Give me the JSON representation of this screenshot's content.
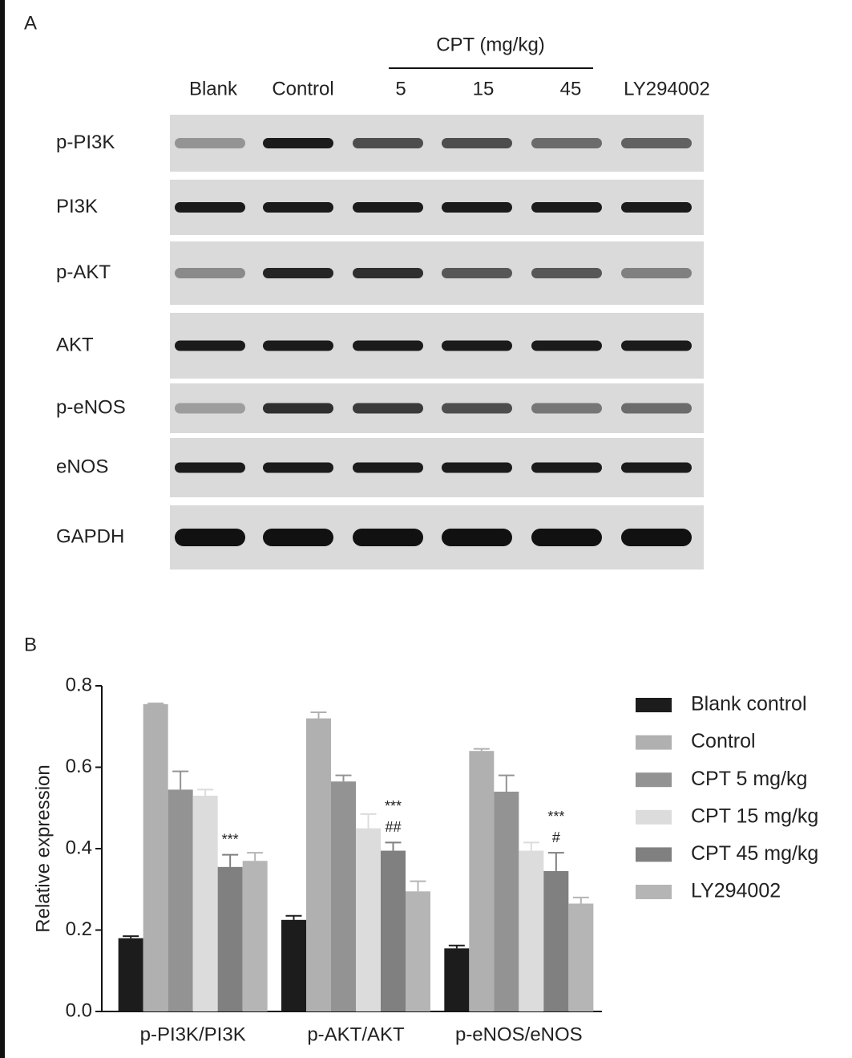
{
  "panel_a": {
    "label": "A",
    "group_label": "CPT (mg/kg)",
    "lanes": [
      "Blank",
      "Control",
      "5",
      "15",
      "45",
      "LY294002"
    ],
    "rows": [
      "p-PI3K",
      "PI3K",
      "p-AKT",
      "AKT",
      "p-eNOS",
      "eNOS",
      "GAPDH"
    ]
  },
  "chart_data": {
    "type": "bar",
    "label": "B",
    "y_label": "Relative expression",
    "categories": [
      "p-PI3K/PI3K",
      "p-AKT/AKT",
      "p-eNOS/eNOS"
    ],
    "series": [
      {
        "name": "Blank control",
        "color": "#1c1c1c",
        "values": [
          0.18,
          0.225,
          0.155
        ],
        "errors": [
          0.005,
          0.01,
          0.007
        ]
      },
      {
        "name": "Control",
        "color": "#b0b0b0",
        "values": [
          0.755,
          0.72,
          0.64
        ],
        "errors": [
          0.002,
          0.015,
          0.005
        ]
      },
      {
        "name": "CPT 5 mg/kg",
        "color": "#939393",
        "values": [
          0.545,
          0.565,
          0.54
        ],
        "errors": [
          0.045,
          0.015,
          0.04
        ]
      },
      {
        "name": "CPT 15 mg/kg",
        "color": "#dcdcdc",
        "values": [
          0.53,
          0.45,
          0.395
        ],
        "errors": [
          0.015,
          0.035,
          0.02
        ]
      },
      {
        "name": "CPT 45 mg/kg",
        "color": "#808080",
        "values": [
          0.355,
          0.395,
          0.345
        ],
        "errors": [
          0.03,
          0.02,
          0.045
        ],
        "annotations": [
          [
            "***"
          ],
          [
            "***",
            "##"
          ],
          [
            "***",
            "#"
          ]
        ]
      },
      {
        "name": "LY294002",
        "color": "#b5b5b5",
        "values": [
          0.37,
          0.295,
          0.265
        ],
        "errors": [
          0.02,
          0.025,
          0.015
        ]
      }
    ],
    "ylim": [
      0,
      0.8
    ],
    "yticks": [
      {
        "value": 0,
        "label": "0.0"
      },
      0.2,
      0.4,
      0.6,
      0.8
    ],
    "grid": false,
    "legend": "right"
  }
}
